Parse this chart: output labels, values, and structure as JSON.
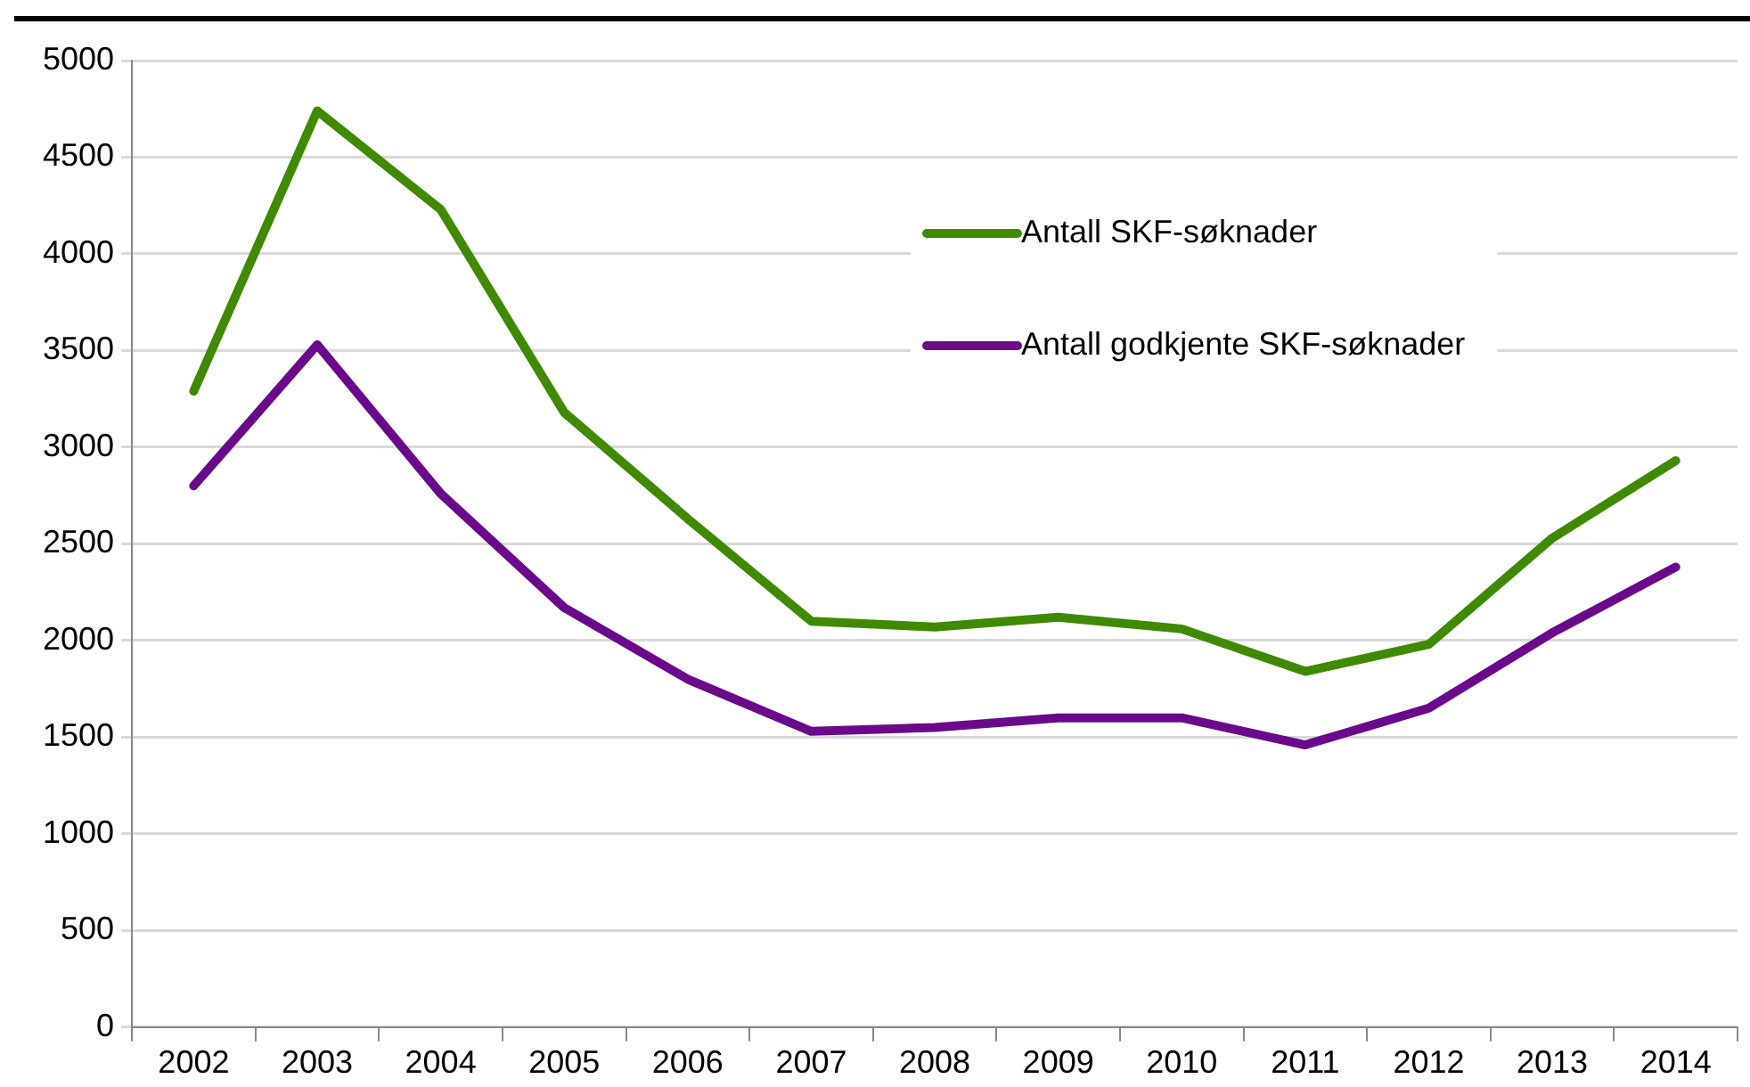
{
  "chart_data": {
    "type": "line",
    "categories": [
      "2002",
      "2003",
      "2004",
      "2005",
      "2006",
      "2007",
      "2008",
      "2009",
      "2010",
      "2011",
      "2012",
      "2013",
      "2014"
    ],
    "series": [
      {
        "name": "Antall SKF-søknader",
        "color": "#3f8a00",
        "values": [
          3290,
          4740,
          4230,
          3180,
          2630,
          2100,
          2070,
          2120,
          2060,
          1840,
          1980,
          2530,
          2930
        ]
      },
      {
        "name": "Antall godkjente SKF-søknader",
        "color": "#6a0a8a",
        "values": [
          2800,
          3530,
          2760,
          2170,
          1800,
          1530,
          1550,
          1600,
          1600,
          1460,
          1650,
          2040,
          2380
        ]
      }
    ],
    "ylim": [
      0,
      5000
    ],
    "yticks": [
      0,
      500,
      1000,
      1500,
      2000,
      2500,
      3000,
      3500,
      4000,
      4500,
      5000
    ],
    "grid": "y",
    "legend": "top right",
    "marker": "none",
    "line_style": "solid"
  }
}
